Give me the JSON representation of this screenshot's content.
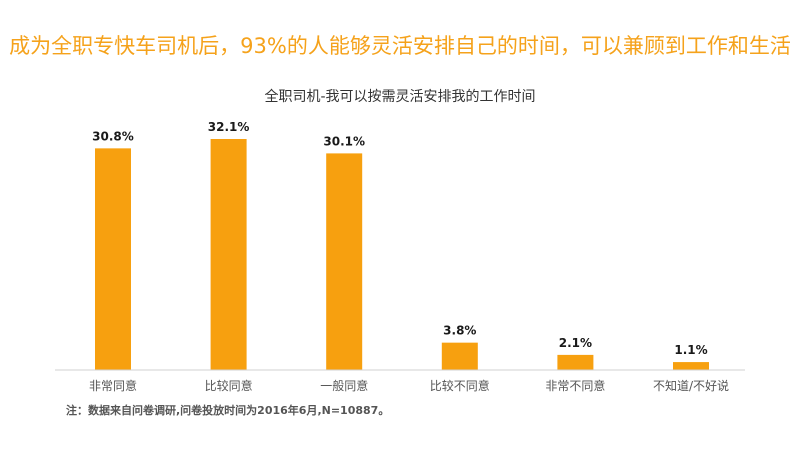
{
  "headline": "成为全职专快车司机后，93%的人能够灵活安排自己的时间，可以兼顾到工作和生活",
  "chart_data": {
    "type": "bar",
    "title": "全职司机-我可以按需灵活安排我的工作时间",
    "categories": [
      "非常同意",
      "比较同意",
      "一般同意",
      "比较不同意",
      "非常不同意",
      "不知道/不好说"
    ],
    "values": [
      30.8,
      32.1,
      30.1,
      3.8,
      2.1,
      1.1
    ],
    "value_labels": [
      "30.8%",
      "32.1%",
      "30.1%",
      "3.8%",
      "2.1%",
      "1.1%"
    ],
    "ylim": [
      0,
      32.1
    ],
    "grid": false,
    "bar_color": "#f7a00f",
    "accent_color": "#f5a21b"
  },
  "note": "注：数据来自问卷调研,问卷投放时间为2016年6月,N=10887。"
}
